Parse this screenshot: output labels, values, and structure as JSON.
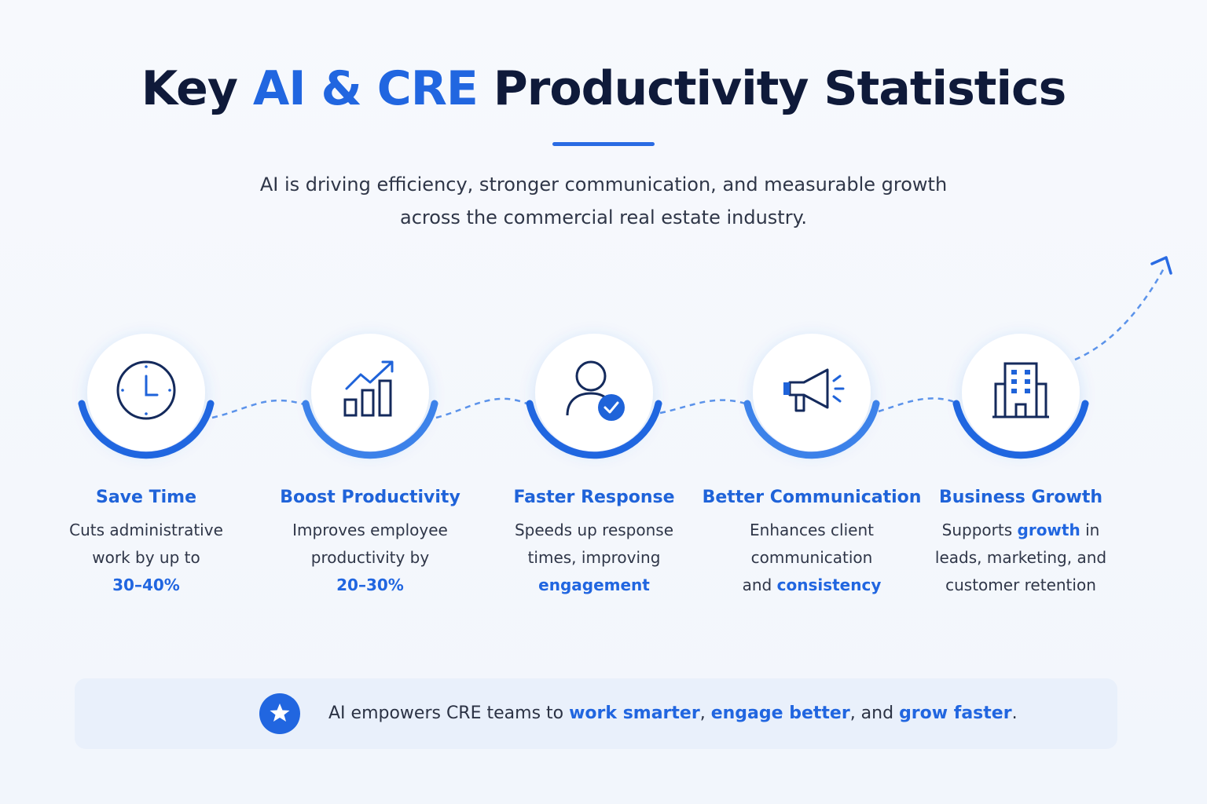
{
  "title": [
    {
      "text": "Key ",
      "emphasis": false
    },
    {
      "text": "AI & CRE",
      "emphasis": true
    },
    {
      "text": " Productivity Statistics",
      "emphasis": false
    }
  ],
  "subtitle_lines": [
    "AI is driving efficiency, stronger communication, and measurable growth",
    "across the commercial real estate industry."
  ],
  "cards": [
    {
      "title": "Save Time",
      "lines": [
        [
          {
            "text": "Cuts administrative",
            "emphasis": false
          }
        ],
        [
          {
            "text": "work by up to",
            "emphasis": false
          }
        ],
        [
          {
            "text": "30–40%",
            "emphasis": true
          }
        ]
      ]
    },
    {
      "title": "Boost Productivity",
      "lines": [
        [
          {
            "text": "Improves employee",
            "emphasis": false
          }
        ],
        [
          {
            "text": "productivity by",
            "emphasis": false
          }
        ],
        [
          {
            "text": "20–30%",
            "emphasis": true
          }
        ]
      ]
    },
    {
      "title": "Faster Response",
      "lines": [
        [
          {
            "text": "Speeds up response",
            "emphasis": false
          }
        ],
        [
          {
            "text": "times, improving",
            "emphasis": false
          }
        ],
        [
          {
            "text": "engagement",
            "emphasis": true
          }
        ]
      ]
    },
    {
      "title": "Better Communication",
      "lines": [
        [
          {
            "text": "Enhances client",
            "emphasis": false
          }
        ],
        [
          {
            "text": "communication",
            "emphasis": false
          }
        ],
        [
          {
            "text": "and ",
            "emphasis": false
          },
          {
            "text": "consistency",
            "emphasis": true
          }
        ]
      ]
    },
    {
      "title": "Business Growth",
      "lines": [
        [
          {
            "text": "Supports ",
            "emphasis": false
          },
          {
            "text": "growth",
            "emphasis": true
          },
          {
            "text": " in",
            "emphasis": false
          }
        ],
        [
          {
            "text": "leads, marketing, and",
            "emphasis": false
          }
        ],
        [
          {
            "text": "customer retention",
            "emphasis": false
          }
        ]
      ]
    }
  ],
  "footer": [
    {
      "text": "AI empowers CRE teams to ",
      "emphasis": false
    },
    {
      "text": "work smarter",
      "emphasis": true
    },
    {
      "text": ", ",
      "emphasis": false
    },
    {
      "text": "engage better",
      "emphasis": true
    },
    {
      "text": ", and ",
      "emphasis": false
    },
    {
      "text": "grow faster",
      "emphasis": true
    },
    {
      "text": ".",
      "emphasis": false
    }
  ]
}
